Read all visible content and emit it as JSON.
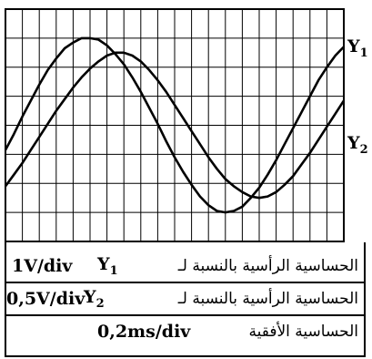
{
  "chart_data": {
    "type": "line",
    "title": "",
    "xlabel": "",
    "ylabel": "",
    "grid": true,
    "divisions": {
      "x": 10,
      "y": 8
    },
    "xlim": [
      0,
      10
    ],
    "ylim": [
      -4,
      4
    ],
    "series": [
      {
        "name": "Y1",
        "color": "#000000",
        "x": [
          0,
          0.25,
          0.5,
          0.75,
          1,
          1.25,
          1.5,
          1.75,
          2,
          2.25,
          2.5,
          2.75,
          3,
          3.25,
          3.5,
          3.75,
          4,
          4.25,
          4.5,
          4.75,
          5,
          5.25,
          5.5,
          5.75,
          6,
          6.25,
          6.5,
          6.75,
          7,
          7.25,
          7.5,
          7.75,
          8,
          8.25,
          8.5,
          8.75,
          9,
          9.25,
          9.5,
          9.75,
          10
        ],
        "y": [
          -0.85,
          -0.3,
          0.3,
          0.85,
          1.4,
          1.9,
          2.3,
          2.65,
          2.85,
          3.0,
          3.0,
          2.95,
          2.75,
          2.45,
          2.1,
          1.65,
          1.15,
          0.6,
          0.05,
          -0.55,
          -1.1,
          -1.6,
          -2.05,
          -2.45,
          -2.75,
          -2.95,
          -3.0,
          -2.95,
          -2.8,
          -2.5,
          -2.15,
          -1.7,
          -1.2,
          -0.65,
          -0.1,
          0.45,
          1.0,
          1.55,
          2.0,
          2.4,
          2.7
        ]
      },
      {
        "name": "Y2",
        "color": "#000000",
        "x": [
          0,
          0.25,
          0.5,
          0.75,
          1,
          1.25,
          1.5,
          1.75,
          2,
          2.25,
          2.5,
          2.75,
          3,
          3.25,
          3.5,
          3.75,
          4,
          4.25,
          4.5,
          4.75,
          5,
          5.25,
          5.5,
          5.75,
          6,
          6.25,
          6.5,
          6.75,
          7,
          7.25,
          7.5,
          7.75,
          8,
          8.25,
          8.5,
          8.75,
          9,
          9.25,
          9.5,
          9.75,
          10
        ],
        "y": [
          -2.1,
          -1.7,
          -1.3,
          -0.85,
          -0.4,
          0.05,
          0.5,
          0.9,
          1.3,
          1.65,
          1.95,
          2.2,
          2.4,
          2.5,
          2.5,
          2.4,
          2.2,
          1.9,
          1.55,
          1.15,
          0.7,
          0.25,
          -0.2,
          -0.65,
          -1.1,
          -1.5,
          -1.85,
          -2.1,
          -2.3,
          -2.45,
          -2.5,
          -2.45,
          -2.3,
          -2.05,
          -1.75,
          -1.35,
          -0.95,
          -0.5,
          -0.05,
          0.4,
          0.85
        ]
      }
    ]
  },
  "labels": {
    "y1_main": "Y",
    "y1_sub": "1",
    "y2_main": "Y",
    "y2_sub": "2"
  },
  "settings": [
    {
      "text_ar": "الحساسية الرأسية بالنسبة لـ",
      "channel_main": "Y",
      "channel_sub": "1",
      "value": "1V/div"
    },
    {
      "text_ar": "الحساسية الرأسية بالنسبة لـ",
      "channel_main": "Y",
      "channel_sub": "2",
      "value": "0,5V/div"
    },
    {
      "text_ar": "الحساسية الأفقية",
      "channel_main": "",
      "channel_sub": "",
      "value": "0,2ms/div"
    }
  ]
}
